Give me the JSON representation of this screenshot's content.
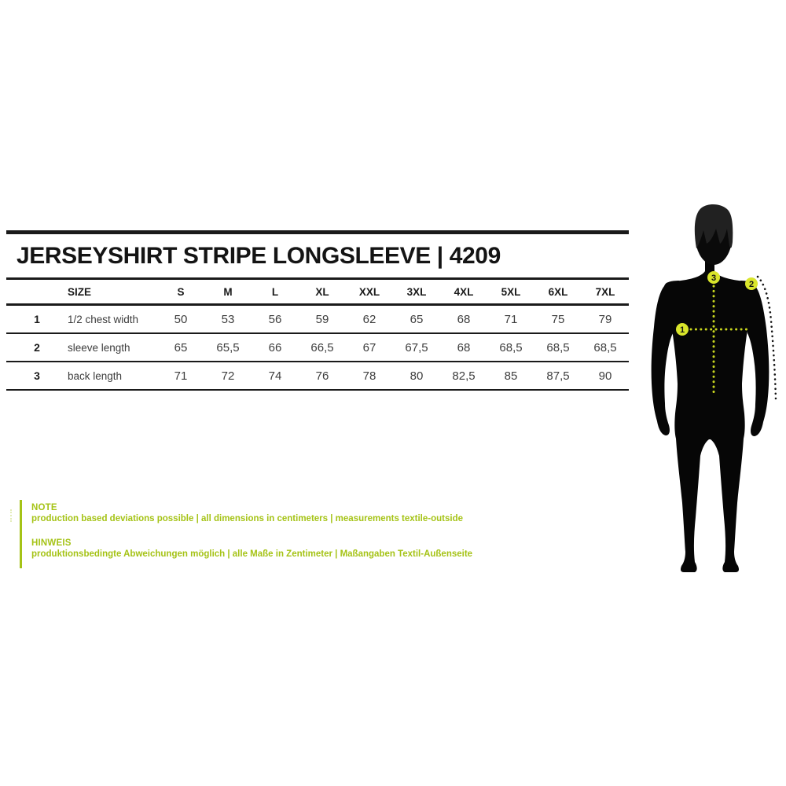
{
  "title": "JERSEYSHIRT STRIPE LONGSLEEVE | 4209",
  "colors": {
    "accent_green": "#a5c316",
    "marker_yellow": "#d9e52b",
    "dot_yellow": "#c8d61f",
    "line_black": "#1a1a1a"
  },
  "table": {
    "size_header": "SIZE",
    "sizes": [
      "S",
      "M",
      "L",
      "XL",
      "XXL",
      "3XL",
      "4XL",
      "5XL",
      "6XL",
      "7XL"
    ],
    "rows": [
      {
        "num": "1",
        "label": "1/2 chest width",
        "values": [
          "50",
          "53",
          "56",
          "59",
          "62",
          "65",
          "68",
          "71",
          "75",
          "79"
        ]
      },
      {
        "num": "2",
        "label": "sleeve length",
        "values": [
          "65",
          "65,5",
          "66",
          "66,5",
          "67",
          "67,5",
          "68",
          "68,5",
          "68,5",
          "68,5"
        ]
      },
      {
        "num": "3",
        "label": "back length",
        "values": [
          "71",
          "72",
          "74",
          "76",
          "78",
          "80",
          "82,5",
          "85",
          "87,5",
          "90"
        ]
      }
    ]
  },
  "notes": {
    "en_heading": "NOTE",
    "en_body": "production based deviations possible | all dimensions in centimeters | measurements textile-outside",
    "de_heading": "HINWEIS",
    "de_body": "produktionsbedingte Abweichungen möglich | alle Maße in Zentimeter | Maßangaben Textil-Außenseite"
  },
  "figure": {
    "markers": [
      "1",
      "2",
      "3"
    ]
  }
}
